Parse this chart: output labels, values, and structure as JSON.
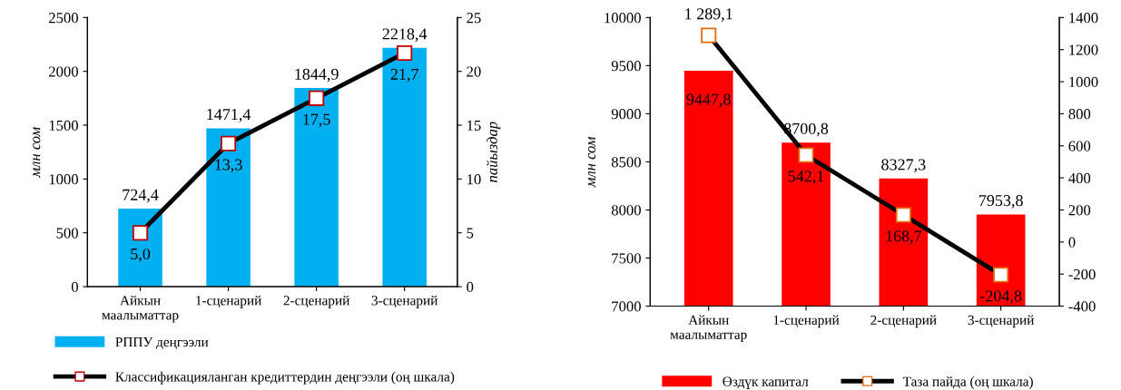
{
  "chart_data": [
    {
      "type": "bar",
      "categories": [
        "Айкын\nмаалыматтар",
        "1-сценарий",
        "2-сценарий",
        "3-сценарий"
      ],
      "ylabel": "млн сом",
      "y2label": "пайыздар",
      "ylim": [
        0,
        2500
      ],
      "yticks": [
        0,
        500,
        1000,
        1500,
        2000,
        2500
      ],
      "y2lim": [
        0,
        25
      ],
      "y2ticks": [
        0,
        5,
        10,
        15,
        20,
        25
      ],
      "legend": "bottom",
      "grid": false,
      "marker": "square",
      "series": [
        {
          "name": "РППУ деңгээли",
          "color": "#00b0f0",
          "values": [
            724.4,
            1471.4,
            1844.9,
            2218.4
          ],
          "value_labels": [
            "724,4",
            "1471,4",
            "1844,9",
            "2218,4"
          ]
        },
        {
          "name": "Классификацияланган кредиттердин деңгээли (оң шкала)",
          "type": "line",
          "axis": "y2",
          "color": "#000000",
          "colors": [
            "#c00000",
            "#c00000",
            "#c00000",
            "#c00000"
          ],
          "values": [
            5.0,
            13.3,
            17.5,
            21.7
          ],
          "value_labels": [
            "5,0",
            "13,3",
            "17,5",
            "21,7"
          ]
        }
      ]
    },
    {
      "type": "bar",
      "categories": [
        "Айкын\nмаалыматтар",
        "1-сценарий",
        "2-сценарий",
        "3-сценарий"
      ],
      "ylabel": "млн сом",
      "ylim": [
        7000,
        10000
      ],
      "yticks": [
        7000,
        7500,
        8000,
        8500,
        9000,
        9500,
        10000
      ],
      "y2lim": [
        -400,
        1400
      ],
      "y2ticks": [
        -400,
        -200,
        0,
        200,
        400,
        600,
        800,
        1000,
        1200,
        1400
      ],
      "legend": "bottom",
      "grid": false,
      "marker": "square",
      "series": [
        {
          "name": "Өздүк капитал",
          "color": "#ff0000",
          "values": [
            9447.8,
            8700.8,
            8327.3,
            7953.8
          ],
          "value_labels": [
            "9447,8",
            "8700,8",
            "8327,3",
            "7953,8"
          ]
        },
        {
          "name": "Таза пайда (оң шкала)",
          "type": "line",
          "axis": "y2",
          "color": "#000000",
          "colors": [
            "#e46c0a",
            "#e46c0a",
            "#e46c0a",
            "#e46c0a"
          ],
          "values": [
            1289.1,
            542.1,
            168.7,
            -204.8
          ],
          "value_labels": [
            "1 289,1",
            "542,1",
            "168,7",
            "-204,8"
          ]
        }
      ]
    }
  ]
}
